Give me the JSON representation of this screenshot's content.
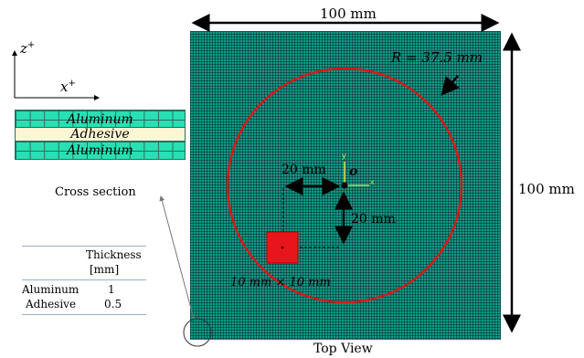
{
  "axes": {
    "z_label": "z",
    "z_sup": "+",
    "x_label": "x",
    "x_sup": "+"
  },
  "cross_section": {
    "layers": [
      "Aluminum",
      "Adhesive",
      "Aluminum"
    ],
    "caption": "Cross section",
    "colors": {
      "aluminum": "#28e0b4",
      "adhesive": "#fbf7d4",
      "grid": "#2a6e5e"
    }
  },
  "table": {
    "header": [
      "Thickness",
      "[mm]"
    ],
    "rows": [
      {
        "material": "Aluminum",
        "thickness": "1"
      },
      {
        "material": "Adhesive",
        "thickness": "0.5"
      }
    ]
  },
  "top_view": {
    "caption": "Top View",
    "width_label": "100 mm",
    "height_label": "100 mm",
    "radius_label": "R = 37.5 mm",
    "offset_x_label": "20 mm",
    "offset_y_label": "20 mm",
    "square_label": "10 mm × 10 mm",
    "origin_label": "o",
    "local_x": "x",
    "local_y": "y",
    "colors": {
      "mesh": "#139b8b",
      "circle": "#d81818",
      "square": "#e8161c",
      "axis_x": "#a7e04a",
      "axis_y": "#e6e04a"
    }
  }
}
